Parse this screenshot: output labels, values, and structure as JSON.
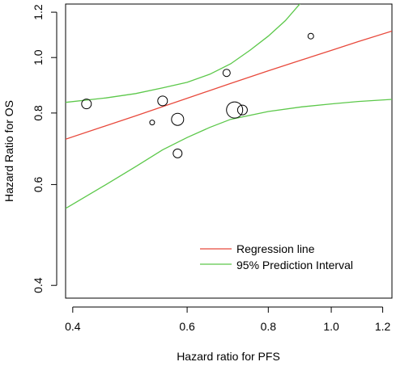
{
  "chart_data": {
    "type": "scatter",
    "title": "",
    "xlabel": "Hazard ratio for PFS",
    "ylabel": "Hazard Ratio for OS",
    "x_scale": "log",
    "y_scale": "log",
    "xlim": [
      0.39,
      1.24
    ],
    "ylim": [
      0.38,
      1.24
    ],
    "x_ticks": [
      0.4,
      0.6,
      0.8,
      1.0,
      1.2
    ],
    "x_tick_labels": [
      "0.4",
      "0.6",
      "0.8",
      "1.0",
      "1.2"
    ],
    "y_ticks": [
      0.4,
      0.6,
      0.8,
      1.0,
      1.2
    ],
    "y_tick_labels": [
      "0.4",
      "0.6",
      "0.8",
      "1.0",
      "1.2"
    ],
    "grid": false,
    "legend_position": "bottom-right",
    "points": [
      {
        "x": 0.42,
        "y": 0.83,
        "weight": 1.2
      },
      {
        "x": 0.53,
        "y": 0.77,
        "weight": 0.6
      },
      {
        "x": 0.55,
        "y": 0.84,
        "weight": 1.2
      },
      {
        "x": 0.58,
        "y": 0.78,
        "weight": 1.5
      },
      {
        "x": 0.58,
        "y": 0.68,
        "weight": 1.1
      },
      {
        "x": 0.69,
        "y": 0.94,
        "weight": 0.9
      },
      {
        "x": 0.71,
        "y": 0.81,
        "weight": 2.0
      },
      {
        "x": 0.73,
        "y": 0.81,
        "weight": 1.2
      },
      {
        "x": 0.93,
        "y": 1.09,
        "weight": 0.7
      }
    ],
    "series": [
      {
        "name": "Regression line",
        "color": "#e8493c",
        "x": [
          0.39,
          0.5,
          0.6,
          0.7,
          0.8,
          0.9,
          1.0,
          1.1,
          1.24
        ],
        "y": [
          0.72,
          0.791,
          0.849,
          0.901,
          0.948,
          0.99,
          1.029,
          1.066,
          1.112
        ]
      },
      {
        "name": "95% Prediction Interval",
        "color": "#5cc84a",
        "x": [
          0.39,
          0.45,
          0.5,
          0.55,
          0.6,
          0.65,
          0.7,
          0.75,
          0.8,
          0.85,
          0.9
        ],
        "y": [
          0.835,
          0.85,
          0.865,
          0.885,
          0.905,
          0.935,
          0.975,
          1.03,
          1.09,
          1.16,
          1.25
        ]
      },
      {
        "name": "",
        "color": "#5cc84a",
        "x": [
          0.39,
          0.45,
          0.5,
          0.55,
          0.6,
          0.65,
          0.7,
          0.8,
          0.9,
          1.0,
          1.1,
          1.24
        ],
        "y": [
          0.545,
          0.6,
          0.645,
          0.69,
          0.725,
          0.755,
          0.78,
          0.805,
          0.82,
          0.83,
          0.838,
          0.845
        ]
      }
    ],
    "legend": [
      {
        "label": "Regression line",
        "color": "#e8493c"
      },
      {
        "label": "95% Prediction Interval",
        "color": "#5cc84a"
      }
    ],
    "point_color": "#000000"
  }
}
